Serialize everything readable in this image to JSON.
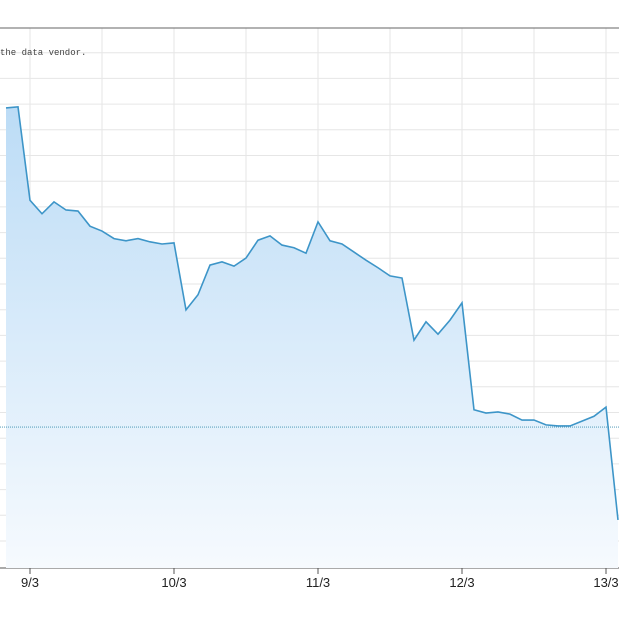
{
  "chart_data": {
    "type": "area",
    "note": "the data vendor.",
    "categories": [
      null,
      null,
      "9/3",
      null,
      null,
      null,
      null,
      null,
      null,
      null,
      null,
      null,
      null,
      null,
      "10/3",
      null,
      null,
      null,
      null,
      null,
      null,
      null,
      null,
      null,
      null,
      null,
      "11/3",
      null,
      null,
      null,
      null,
      null,
      null,
      null,
      null,
      null,
      null,
      null,
      "12/3",
      null,
      null,
      null,
      null,
      null,
      null,
      null,
      null,
      null,
      null,
      null,
      "13/3",
      null
    ],
    "series": [
      {
        "color": "#3d95c8",
        "values": [
          85.2,
          85.4,
          68.1,
          65.6,
          67.8,
          66.3,
          66.1,
          63.3,
          62.4,
          61.0,
          60.6,
          61.0,
          60.4,
          60.0,
          60.2,
          47.8,
          50.6,
          56.1,
          56.7,
          55.9,
          57.4,
          60.7,
          61.5,
          59.8,
          59.3,
          58.3,
          64.1,
          60.6,
          60.0,
          58.5,
          57.0,
          55.6,
          54.1,
          53.7,
          42.2,
          45.6,
          43.3,
          45.9,
          49.1,
          29.3,
          28.7,
          28.9,
          28.5,
          27.4,
          27.4,
          26.5,
          26.3,
          26.3,
          27.2,
          28.1,
          29.8,
          8.9
        ]
      }
    ],
    "reference_line": 26.1,
    "ylim": [
      0,
      100
    ],
    "grid": true
  }
}
